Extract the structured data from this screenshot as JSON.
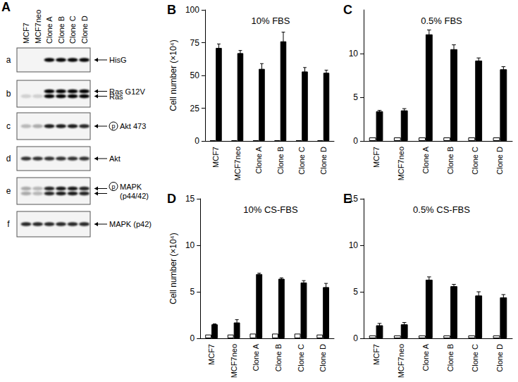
{
  "blot": {
    "panel": "A",
    "lanes": [
      "MCF7",
      "MCF7neo",
      "Clone A",
      "Clone B",
      "Clone C",
      "Clone D"
    ],
    "rows": [
      {
        "letter": "a",
        "bands": [
          [
            0,
            0,
            1,
            1,
            1,
            1
          ]
        ],
        "labels": [
          {
            "prefix": null,
            "lines": [
              "HisG"
            ]
          }
        ]
      },
      {
        "letter": "b",
        "bands": [
          [
            0,
            0,
            1,
            1,
            1,
            1
          ],
          [
            0.15,
            0.15,
            1,
            1,
            1,
            1
          ]
        ],
        "labels": [
          {
            "prefix": null,
            "lines": [
              "Ras G12V"
            ]
          },
          {
            "prefix": null,
            "lines": [
              "Ras"
            ]
          }
        ]
      },
      {
        "letter": "c",
        "bands": [
          [
            0.25,
            0.3,
            0.9,
            0.9,
            0.9,
            0.85
          ]
        ],
        "labels": [
          {
            "prefix": "p",
            "lines": [
              "Akt 473"
            ]
          }
        ]
      },
      {
        "letter": "d",
        "bands": [
          [
            0.8,
            0.8,
            0.8,
            0.8,
            0.8,
            0.8
          ]
        ],
        "labels": [
          {
            "prefix": null,
            "lines": [
              "Akt"
            ]
          }
        ]
      },
      {
        "letter": "e",
        "bands": [
          [
            0.3,
            0.25,
            0.85,
            0.9,
            0.9,
            0.85
          ],
          [
            0.3,
            0.25,
            0.85,
            0.9,
            0.9,
            0.85
          ]
        ],
        "labels": [
          {
            "prefix": "p",
            "lines": [
              "MAPK",
              "(p44/42)"
            ]
          }
        ]
      },
      {
        "letter": "f",
        "bands": [
          [
            0.85,
            0.85,
            0.85,
            0.85,
            0.85,
            0.85
          ]
        ],
        "labels": [
          {
            "prefix": null,
            "lines": [
              "MAPK (p42)"
            ]
          }
        ]
      }
    ]
  },
  "chart_data": [
    {
      "type": "bar",
      "annotations": [
        "B"
      ],
      "title": "10% FBS",
      "ylabel": "Cell number (×10⁴)",
      "categories": [
        "MCF7",
        "MCF7neo",
        "Clone A",
        "Clone B",
        "Clone C",
        "Clone D"
      ],
      "series": [
        {
          "color": "#ffffff",
          "values": [
            0.5,
            0.5,
            0.5,
            0.5,
            0.5,
            0.5
          ]
        },
        {
          "color": "#000000",
          "values": [
            71,
            67,
            55,
            76,
            53,
            52
          ],
          "errors": [
            3,
            2,
            4,
            7,
            3,
            2
          ]
        }
      ],
      "ylim": [
        0,
        100
      ],
      "yticks": [
        0,
        25,
        50,
        75,
        100
      ],
      "grid": false
    },
    {
      "type": "bar",
      "annotations": [
        "C"
      ],
      "title": "0.5% FBS",
      "categories": [
        "MCF7",
        "MCF7neo",
        "Clone A",
        "Clone B",
        "Clone C",
        "Clone D"
      ],
      "series": [
        {
          "color": "#ffffff",
          "values": [
            0.4,
            0.4,
            0.4,
            0.4,
            0.4,
            0.4
          ]
        },
        {
          "color": "#000000",
          "values": [
            3.4,
            3.5,
            12.2,
            10.5,
            9.2,
            8.2
          ],
          "errors": [
            0.1,
            0.2,
            0.5,
            0.5,
            0.3,
            0.3
          ]
        }
      ],
      "ylim": [
        0,
        15
      ],
      "yticks": [
        0,
        5,
        10
      ],
      "grid": false
    },
    {
      "type": "bar",
      "annotations": [
        "D"
      ],
      "title": "10% CS-FBS",
      "ylabel": "Cell number (×10⁴)",
      "categories": [
        "MCF7",
        "MCF7neo",
        "Clone A",
        "Clone B",
        "Clone C",
        "Clone D"
      ],
      "series": [
        {
          "color": "#ffffff",
          "values": [
            0.4,
            0.4,
            0.5,
            0.5,
            0.5,
            0.4
          ]
        },
        {
          "color": "#000000",
          "values": [
            1.5,
            1.7,
            6.9,
            6.4,
            6.0,
            5.5
          ],
          "errors": [
            0.05,
            0.3,
            0.1,
            0.1,
            0.2,
            0.4
          ]
        }
      ],
      "ylim": [
        0,
        15
      ],
      "yticks": [
        0,
        5,
        10,
        15
      ],
      "grid": false
    },
    {
      "type": "bar",
      "annotations": [
        "E"
      ],
      "title": "0.5% CS-FBS",
      "categories": [
        "MCF7",
        "MCF7neo",
        "Clone A",
        "Clone B",
        "Clone C",
        "Clone D"
      ],
      "series": [
        {
          "color": "#ffffff",
          "values": [
            0.3,
            0.3,
            0.3,
            0.3,
            0.3,
            0.3
          ]
        },
        {
          "color": "#000000",
          "values": [
            1.4,
            1.5,
            6.3,
            5.6,
            4.6,
            4.4
          ],
          "errors": [
            0.2,
            0.2,
            0.3,
            0.2,
            0.4,
            0.3
          ]
        }
      ],
      "ylim": [
        0,
        15
      ],
      "yticks": [
        0,
        5,
        10,
        15
      ],
      "grid": false
    }
  ]
}
